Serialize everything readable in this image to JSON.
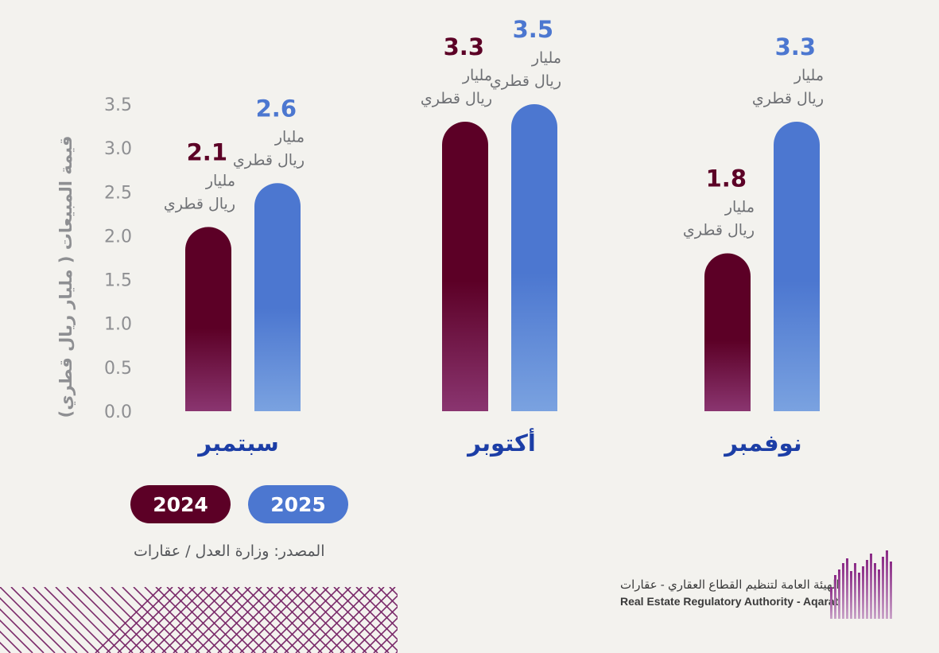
{
  "chart_data": {
    "type": "bar",
    "ylabel": "قيمة المبيعات ( مليار ريال قطري)",
    "ylim": [
      0,
      3.5
    ],
    "yticks": [
      "0.0",
      "0.5",
      "1.0",
      "1.5",
      "2.0",
      "2.5",
      "3.0",
      "3.5"
    ],
    "categories": [
      "سبتمبر",
      "أكتوبر",
      "نوفمبر"
    ],
    "series": [
      {
        "name": "2024",
        "color": "#5c0026",
        "values": [
          2.1,
          3.3,
          1.8
        ],
        "labels": [
          "2.1",
          "3.3",
          "1.8"
        ]
      },
      {
        "name": "2025",
        "color": "#4c77d0",
        "values": [
          2.6,
          3.5,
          3.3
        ],
        "labels": [
          "2.6",
          "3.5",
          "3.3"
        ]
      }
    ],
    "unit_line1": "مليار",
    "unit_line2": "ريال قطري",
    "legend": [
      "2024",
      "2025"
    ]
  },
  "source": "المصدر: وزارة العدل / عقارات",
  "logo": {
    "name_ar": "الهيئة العامة لتنظيم القطاع العقاري - عقارات",
    "name_en": "Real Estate Regulatory Authority - Aqarat"
  }
}
